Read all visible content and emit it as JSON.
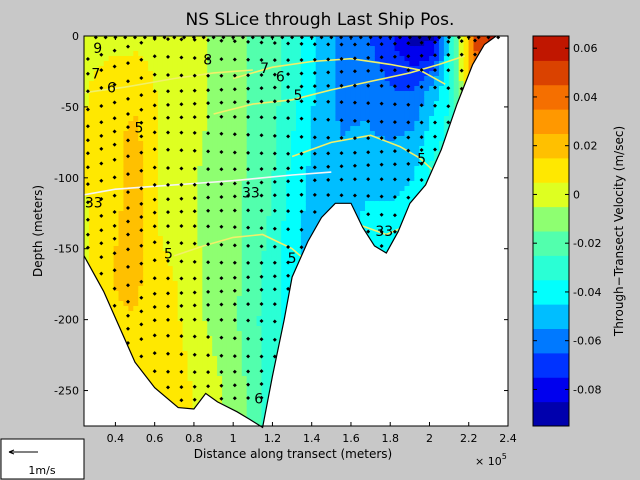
{
  "chart_data": {
    "type": "heatmap",
    "title": "NS SLice through Last Ship Pos.",
    "xlabel": "Distance along transect (meters)",
    "ylabel": "Depth (meters)",
    "x_multiplier_label": "× 10",
    "x_multiplier_exponent": "5",
    "xlim": [
      0.24,
      2.4
    ],
    "ylim": [
      -275,
      0
    ],
    "xticks": [
      {
        "value": 0.4,
        "label": "0.4"
      },
      {
        "value": 0.6,
        "label": "0.6"
      },
      {
        "value": 0.8,
        "label": "0.8"
      },
      {
        "value": 1.0,
        "label": "1"
      },
      {
        "value": 1.2,
        "label": "1.2"
      },
      {
        "value": 1.4,
        "label": "1.4"
      },
      {
        "value": 1.6,
        "label": "1.6"
      },
      {
        "value": 1.8,
        "label": "1.8"
      },
      {
        "value": 2.0,
        "label": "2"
      },
      {
        "value": 2.2,
        "label": "2.2"
      },
      {
        "value": 2.4,
        "label": "2.4"
      }
    ],
    "yticks": [
      {
        "value": 0,
        "label": "0"
      },
      {
        "value": -50,
        "label": "-50"
      },
      {
        "value": -100,
        "label": "-100"
      },
      {
        "value": -150,
        "label": "-150"
      },
      {
        "value": -200,
        "label": "-200"
      },
      {
        "value": -250,
        "label": "-250"
      }
    ],
    "colorbar": {
      "label": "Through−Transect Velocity (m/sec)",
      "range": [
        -0.095,
        0.065
      ],
      "ticks": [
        {
          "value": 0.06,
          "label": "0.06"
        },
        {
          "value": 0.04,
          "label": "0.04"
        },
        {
          "value": 0.02,
          "label": "0.02"
        },
        {
          "value": 0.0,
          "label": "0"
        },
        {
          "value": -0.02,
          "label": "-0.02"
        },
        {
          "value": -0.04,
          "label": "-0.04"
        },
        {
          "value": -0.06,
          "label": "-0.06"
        },
        {
          "value": -0.08,
          "label": "-0.08"
        }
      ]
    },
    "velocity_columns": [
      {
        "x": 0.24,
        "values": [
          0.002,
          0.004,
          0.006,
          0.004,
          0.004,
          0.002,
          0.001
        ]
      },
      {
        "x": 0.4,
        "values": [
          0.001,
          0.012,
          0.012,
          0.012,
          0.016,
          0.014,
          0.01
        ]
      },
      {
        "x": 0.5,
        "values": [
          0.002,
          0.012,
          0.02,
          0.022,
          0.02,
          0.014,
          0.008
        ]
      },
      {
        "x": 0.62,
        "values": [
          0.002,
          0.004,
          0.004,
          0.004,
          0.006,
          0.008,
          0.008
        ]
      },
      {
        "x": 0.72,
        "values": [
          0.0,
          0.0,
          0.002,
          0.004,
          0.004,
          0.006,
          0.014
        ]
      },
      {
        "x": 0.82,
        "values": [
          -0.004,
          -0.004,
          -0.004,
          -0.006,
          -0.004,
          -0.004,
          0.002
        ]
      },
      {
        "x": 0.94,
        "values": [
          -0.006,
          -0.006,
          -0.008,
          -0.01,
          -0.008,
          -0.008,
          -0.004
        ]
      },
      {
        "x": 1.06,
        "values": [
          -0.014,
          -0.014,
          -0.014,
          -0.016,
          -0.016,
          -0.018,
          -0.014
        ]
      },
      {
        "x": 1.18,
        "values": [
          -0.02,
          -0.02,
          -0.02,
          -0.024,
          -0.028,
          -0.03,
          -0.03
        ]
      },
      {
        "x": 1.3,
        "values": [
          -0.03,
          -0.03,
          -0.036,
          -0.04,
          -0.042,
          -0.038,
          -0.036
        ]
      },
      {
        "x": 1.42,
        "values": [
          -0.044,
          -0.046,
          -0.048,
          -0.05,
          -0.052,
          -0.048,
          -0.044
        ]
      },
      {
        "x": 1.55,
        "values": [
          -0.06,
          -0.058,
          -0.054,
          -0.052,
          -0.046,
          -0.044,
          -0.04
        ]
      },
      {
        "x": 1.68,
        "values": [
          -0.064,
          -0.058,
          -0.052,
          -0.044,
          -0.04,
          -0.036,
          -0.034
        ]
      },
      {
        "x": 1.8,
        "values": [
          -0.074,
          -0.064,
          -0.054,
          -0.044,
          -0.036,
          -0.03,
          -0.028
        ]
      },
      {
        "x": 1.92,
        "values": [
          -0.09,
          -0.064,
          -0.05,
          -0.04,
          -0.034,
          -0.03,
          -0.028
        ]
      },
      {
        "x": 2.02,
        "values": [
          -0.088,
          -0.05,
          -0.036,
          -0.024,
          -0.022,
          -0.02,
          -0.02
        ]
      },
      {
        "x": 2.12,
        "values": [
          -0.03,
          -0.03,
          -0.03,
          -0.03,
          -0.03,
          -0.03,
          -0.03
        ]
      },
      {
        "x": 2.24,
        "values": [
          0.05,
          0.04,
          0.03,
          0.02,
          0.02,
          0.02,
          0.02
        ]
      },
      {
        "x": 2.34,
        "values": [
          0.06,
          0.055,
          0.05,
          0.04,
          0.04,
          0.04,
          0.04
        ]
      }
    ],
    "velocity_depths": [
      0,
      -40,
      -80,
      -120,
      -160,
      -200,
      -260
    ],
    "bottom_profile": [
      {
        "x": 0.24,
        "y": -155
      },
      {
        "x": 0.34,
        "y": -180
      },
      {
        "x": 0.42,
        "y": -205
      },
      {
        "x": 0.5,
        "y": -230
      },
      {
        "x": 0.6,
        "y": -248
      },
      {
        "x": 0.72,
        "y": -262
      },
      {
        "x": 0.8,
        "y": -263
      },
      {
        "x": 0.86,
        "y": -252
      },
      {
        "x": 0.92,
        "y": -258
      },
      {
        "x": 1.02,
        "y": -265
      },
      {
        "x": 1.08,
        "y": -270
      },
      {
        "x": 1.15,
        "y": -276
      },
      {
        "x": 1.2,
        "y": -240
      },
      {
        "x": 1.26,
        "y": -200
      },
      {
        "x": 1.3,
        "y": -170
      },
      {
        "x": 1.38,
        "y": -145
      },
      {
        "x": 1.45,
        "y": -128
      },
      {
        "x": 1.52,
        "y": -118
      },
      {
        "x": 1.6,
        "y": -118
      },
      {
        "x": 1.66,
        "y": -135
      },
      {
        "x": 1.72,
        "y": -148
      },
      {
        "x": 1.78,
        "y": -153
      },
      {
        "x": 1.84,
        "y": -138
      },
      {
        "x": 1.9,
        "y": -118
      },
      {
        "x": 1.98,
        "y": -105
      },
      {
        "x": 2.06,
        "y": -80
      },
      {
        "x": 2.14,
        "y": -48
      },
      {
        "x": 2.22,
        "y": -20
      },
      {
        "x": 2.28,
        "y": -6
      },
      {
        "x": 2.34,
        "y": 0
      }
    ],
    "contour_labels": [
      {
        "text": "9",
        "x": 0.31,
        "y": -12
      },
      {
        "text": "8",
        "x": 0.87,
        "y": -20
      },
      {
        "text": "7",
        "x": 0.3,
        "y": -30
      },
      {
        "text": "6",
        "x": 0.38,
        "y": -40
      },
      {
        "text": "7",
        "x": 1.16,
        "y": -26
      },
      {
        "text": "6",
        "x": 1.24,
        "y": -32
      },
      {
        "text": "5",
        "x": 1.33,
        "y": -45
      },
      {
        "text": "5",
        "x": 0.52,
        "y": -68
      },
      {
        "text": "5",
        "x": 1.96,
        "y": -90
      },
      {
        "text": "33",
        "x": 0.29,
        "y": -121
      },
      {
        "text": "33",
        "x": 1.09,
        "y": -114
      },
      {
        "text": "33",
        "x": 1.77,
        "y": -141
      },
      {
        "text": "5",
        "x": 0.67,
        "y": -157
      },
      {
        "text": "5",
        "x": 1.3,
        "y": -160
      },
      {
        "text": "6",
        "x": 1.13,
        "y": -259
      }
    ],
    "grid": false,
    "legend": "none"
  },
  "reference_arrow": {
    "label": "1m/s"
  }
}
